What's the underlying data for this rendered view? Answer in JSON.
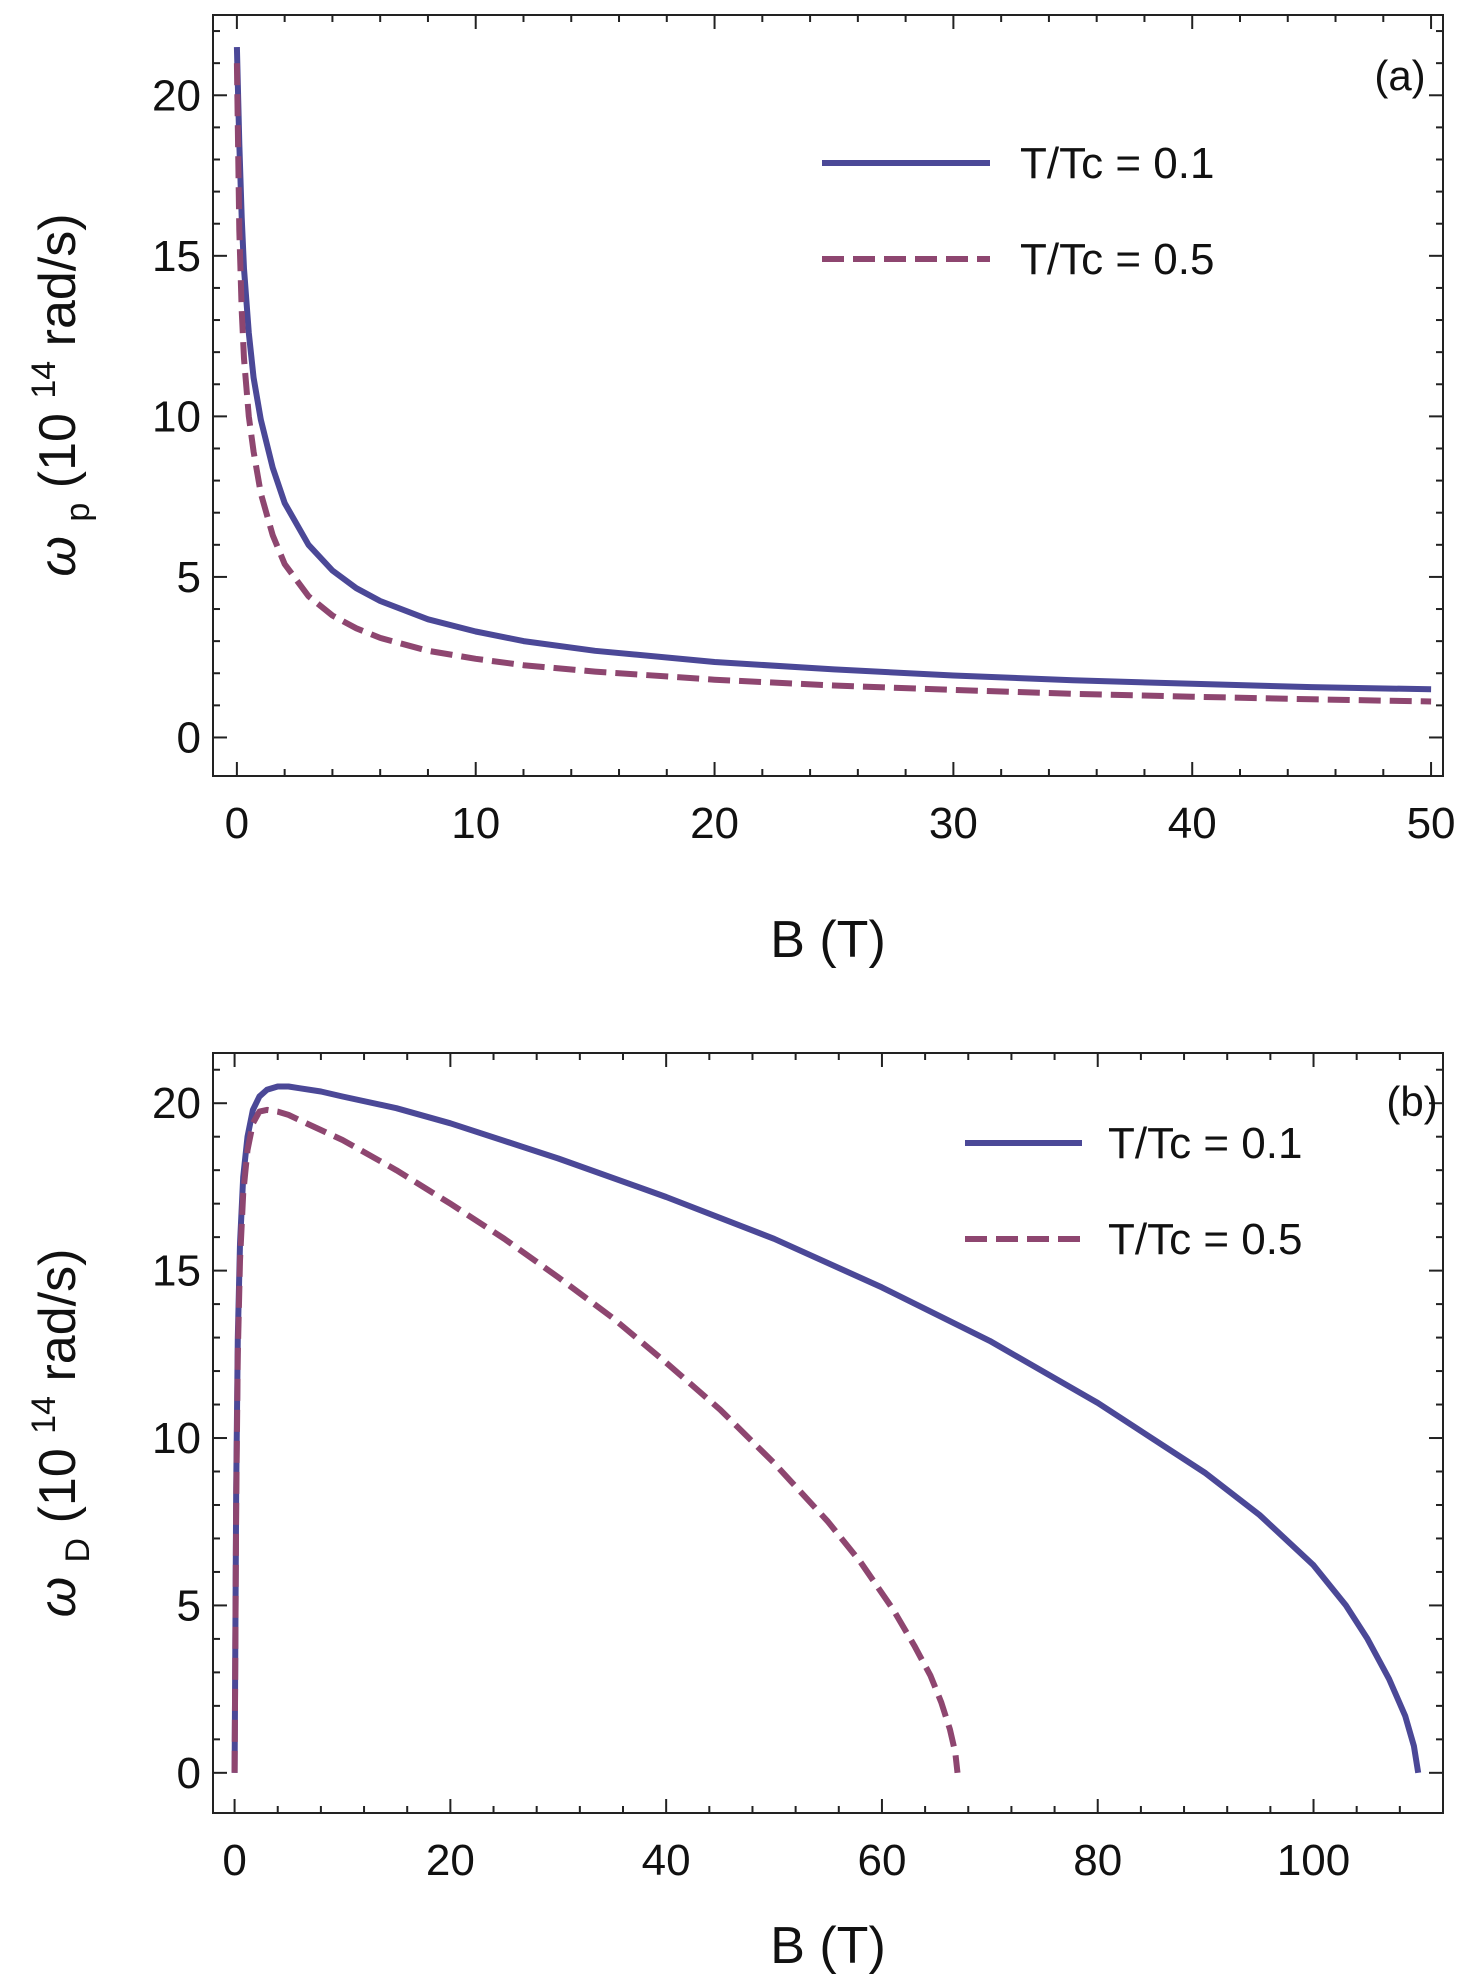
{
  "chart_data": [
    {
      "type": "line",
      "panel_label": "(a)",
      "xlabel": "B (T)",
      "ylabel": {
        "symbol": "ω",
        "subscript": "p",
        "prefix": " (10",
        "superscript": "14",
        "suffix": " rad/s)"
      },
      "xlim": [
        -1,
        50.5
      ],
      "ylim": [
        -1.2,
        22.5
      ],
      "xticks": [
        0,
        10,
        20,
        30,
        40,
        50
      ],
      "yticks": [
        0,
        5,
        10,
        15,
        20
      ],
      "legend_position": "top-right",
      "series": [
        {
          "name": "T/Tc = 0.1",
          "color": "#4B4897",
          "dash": "solid",
          "x": [
            0,
            0.1,
            0.2,
            0.3,
            0.5,
            0.7,
            1,
            1.5,
            2,
            3,
            4,
            5,
            6,
            8,
            10,
            12,
            15,
            20,
            25,
            30,
            35,
            40,
            45,
            50
          ],
          "y": [
            21.5,
            18.5,
            16.2,
            14.6,
            12.6,
            11.2,
            9.9,
            8.4,
            7.3,
            6.0,
            5.2,
            4.65,
            4.25,
            3.68,
            3.3,
            3.0,
            2.7,
            2.35,
            2.12,
            1.93,
            1.78,
            1.67,
            1.57,
            1.5
          ]
        },
        {
          "name": "T/Tc = 0.5",
          "color": "#8E4670",
          "dash": "dashed",
          "x": [
            0,
            0.1,
            0.2,
            0.3,
            0.5,
            0.7,
            1,
            1.5,
            2,
            3,
            4,
            5,
            6,
            8,
            10,
            12,
            15,
            20,
            25,
            30,
            35,
            40,
            45,
            50
          ],
          "y": [
            21.0,
            15.8,
            13.3,
            11.8,
            10.0,
            8.9,
            7.6,
            6.3,
            5.4,
            4.4,
            3.8,
            3.4,
            3.1,
            2.7,
            2.45,
            2.25,
            2.05,
            1.8,
            1.62,
            1.48,
            1.36,
            1.27,
            1.19,
            1.12
          ]
        }
      ]
    },
    {
      "type": "line",
      "panel_label": "(b)",
      "xlabel": "B (T)",
      "ylabel": {
        "symbol": "ω",
        "subscript": "D",
        "prefix": " (10",
        "superscript": "14",
        "suffix": " rad/s)"
      },
      "xlim": [
        -2,
        112
      ],
      "ylim": [
        -1.2,
        21.5
      ],
      "xticks": [
        0,
        20,
        40,
        60,
        80,
        100
      ],
      "yticks": [
        0,
        5,
        10,
        15,
        20
      ],
      "legend_position": "top-right",
      "series": [
        {
          "name": "T/Tc = 0.1",
          "color": "#4B4897",
          "dash": "solid",
          "x": [
            0,
            0.15,
            0.3,
            0.5,
            0.8,
            1.2,
            1.7,
            2.3,
            3,
            4,
            5,
            6,
            8,
            10,
            15,
            20,
            30,
            40,
            50,
            60,
            70,
            80,
            90,
            95,
            100,
            103,
            105,
            107,
            108.5,
            109.3,
            109.7
          ],
          "y": [
            0,
            8.5,
            13.0,
            15.8,
            17.8,
            19.0,
            19.8,
            20.2,
            20.4,
            20.5,
            20.5,
            20.45,
            20.35,
            20.2,
            19.85,
            19.4,
            18.35,
            17.2,
            15.95,
            14.5,
            12.9,
            11.05,
            8.95,
            7.7,
            6.2,
            5.0,
            4.0,
            2.8,
            1.7,
            0.8,
            0
          ]
        },
        {
          "name": "T/Tc = 0.5",
          "color": "#8E4670",
          "dash": "dashed",
          "x": [
            0,
            0.15,
            0.3,
            0.5,
            0.8,
            1.2,
            1.7,
            2.3,
            3,
            4,
            5,
            6,
            8,
            10,
            15,
            20,
            25,
            30,
            35,
            40,
            45,
            50,
            55,
            58,
            61,
            63,
            64.5,
            65.5,
            66.3,
            66.8,
            67
          ],
          "y": [
            0,
            8.0,
            12.5,
            15.3,
            17.3,
            18.6,
            19.4,
            19.75,
            19.8,
            19.75,
            19.65,
            19.5,
            19.2,
            18.9,
            18.0,
            17.0,
            15.95,
            14.8,
            13.6,
            12.25,
            10.85,
            9.25,
            7.5,
            6.3,
            4.9,
            3.8,
            2.9,
            2.1,
            1.3,
            0.6,
            0
          ]
        }
      ]
    }
  ]
}
